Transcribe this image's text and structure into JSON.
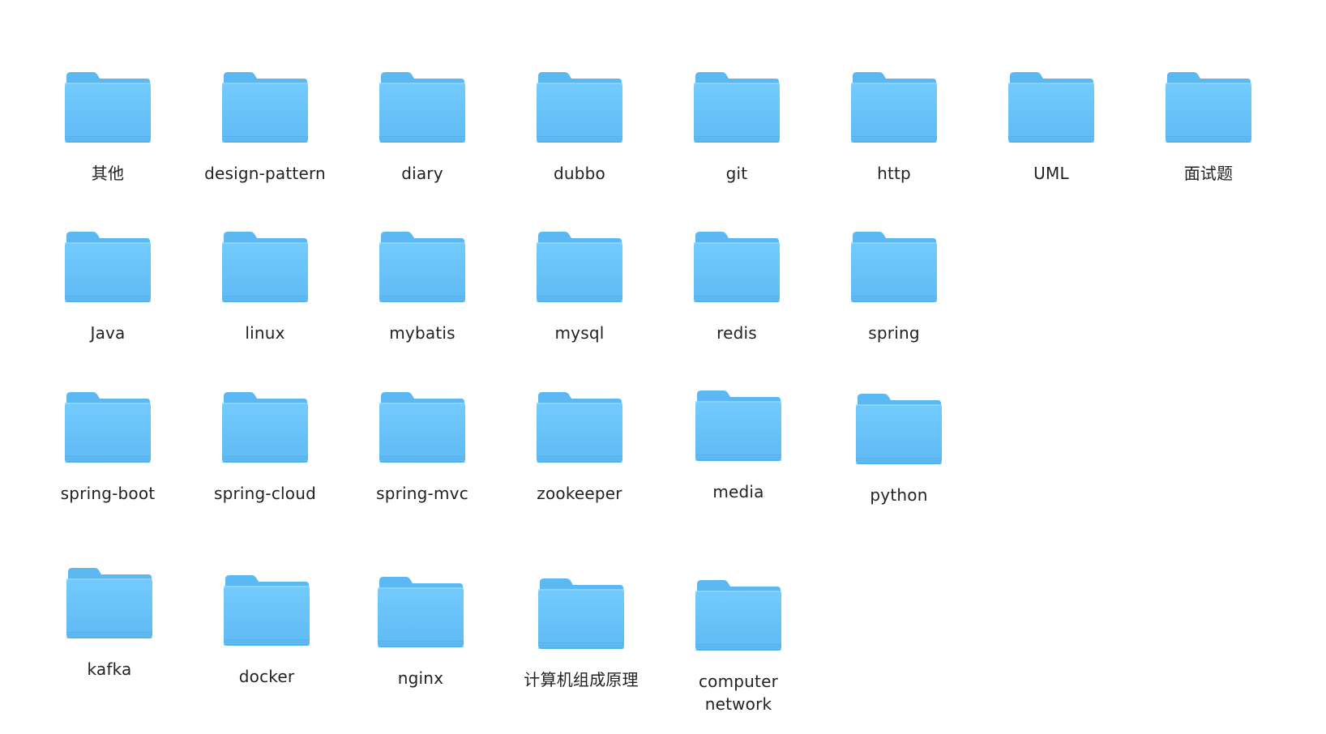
{
  "folders": [
    {
      "label": "其他",
      "icon": "folder-icon"
    },
    {
      "label": "design-pattern",
      "icon": "folder-icon"
    },
    {
      "label": "diary",
      "icon": "folder-icon"
    },
    {
      "label": "dubbo",
      "icon": "folder-icon"
    },
    {
      "label": "git",
      "icon": "folder-icon"
    },
    {
      "label": "http",
      "icon": "folder-icon"
    },
    {
      "label": "UML",
      "icon": "folder-icon"
    },
    {
      "label": "面试题",
      "icon": "folder-icon"
    },
    {
      "label": "Java",
      "icon": "folder-icon"
    },
    {
      "label": "linux",
      "icon": "folder-icon"
    },
    {
      "label": "mybatis",
      "icon": "folder-icon"
    },
    {
      "label": "mysql",
      "icon": "folder-icon"
    },
    {
      "label": "redis",
      "icon": "folder-icon"
    },
    {
      "label": "spring",
      "icon": "folder-icon"
    },
    {
      "label": "spring-boot",
      "icon": "folder-icon"
    },
    {
      "label": "spring-cloud",
      "icon": "folder-icon"
    },
    {
      "label": "spring-mvc",
      "icon": "folder-icon"
    },
    {
      "label": "zookeeper",
      "icon": "folder-icon"
    },
    {
      "label": "media",
      "icon": "folder-icon"
    },
    {
      "label": "python",
      "icon": "folder-icon"
    },
    {
      "label": "kafka",
      "icon": "folder-icon"
    },
    {
      "label": "docker",
      "icon": "folder-icon"
    },
    {
      "label": "nginx",
      "icon": "folder-icon"
    },
    {
      "label": "计算机组成原理",
      "icon": "folder-icon"
    },
    {
      "label": "computer\nnetwork",
      "icon": "folder-icon"
    }
  ],
  "colors": {
    "folder_back": "#5CB8F2",
    "folder_front_top": "#73CBFD",
    "folder_front_bottom": "#5FB9F4",
    "folder_edge": "#4EA6E0",
    "label_text": "#222222"
  }
}
